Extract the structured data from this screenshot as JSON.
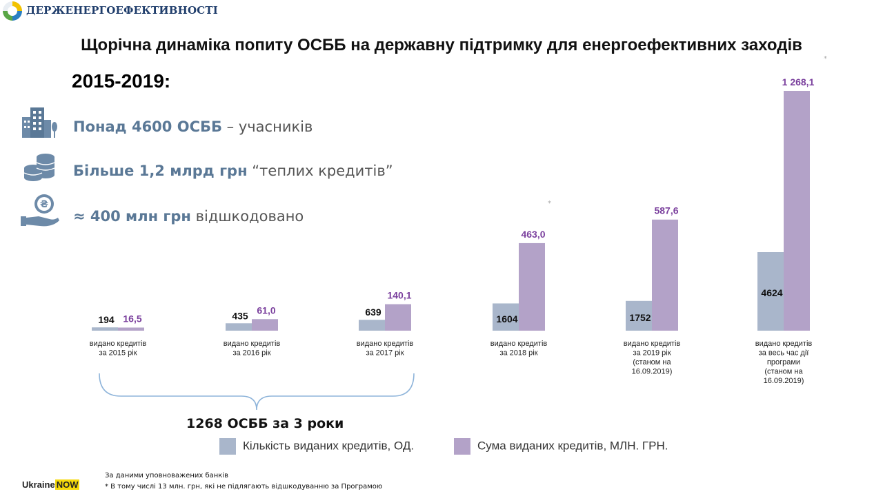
{
  "header": {
    "org_name": "ДЕРЖЕНЕРГОЕФЕКТИВНОСТІ",
    "logo_icon": "energy-efficiency-logo-icon"
  },
  "title": "Щорічна динаміка попиту ОСББ на державну підтримку для енергоефективних заходів",
  "period": "2015-2019:",
  "stats": [
    {
      "icon": "apartment-buildings-icon",
      "bold": "Понад 4600 ОСББ",
      "light": " – учасників"
    },
    {
      "icon": "coin-stack-icon",
      "bold": "Більше 1,2 млрд грн",
      "light": " “теплих кредитів”"
    },
    {
      "icon": "hand-coin-icon",
      "bold": "≈ 400 млн грн",
      "light": " відшкодовано"
    }
  ],
  "chart_data": {
    "type": "bar",
    "categories": [
      [
        "видано кредитів",
        "за 2015  рік"
      ],
      [
        "видано кредитів",
        "за 2016  рік"
      ],
      [
        "видано кредитів",
        "за 2017  рік"
      ],
      [
        "видано кредитів",
        "за 2018  рік"
      ],
      [
        "видано кредитів",
        "за 2019  рік",
        "(станом на",
        "16.09.2019)"
      ],
      [
        "видано кредитів",
        "за весь час дії",
        "програми",
        "(станом на",
        "16.09.2019)"
      ]
    ],
    "series": [
      {
        "name": "Кількість виданих кредитів, ОД.",
        "color": "#a9b6cb",
        "values": [
          194,
          435,
          639,
          1604,
          1752,
          4624
        ],
        "labels": [
          "194",
          "435",
          "639",
          "1604",
          "1752",
          "4624"
        ],
        "label_color": "#111111"
      },
      {
        "name": "Сума виданих кредитів, МЛН. ГРН.",
        "color": "#b3a2c8",
        "values": [
          16.5,
          61.0,
          140.1,
          463.0,
          587.6,
          1268.1
        ],
        "labels": [
          "16,5",
          "61,0",
          "140,1",
          "463,0",
          "587,6",
          "1 268,1"
        ],
        "label_color": "#7a3f9d"
      }
    ],
    "legend_position": "bottom",
    "grid": false
  },
  "bracket_label": "1268 ОСББ за 3  роки",
  "footnotes": [
    "За даними уповноважених банків",
    "* В тому числі 13 млн. грн, які не підлягають відшкодуванню за Програмою"
  ],
  "badge": {
    "text1": "Ukraine",
    "text2": "NOW"
  },
  "star": "*"
}
